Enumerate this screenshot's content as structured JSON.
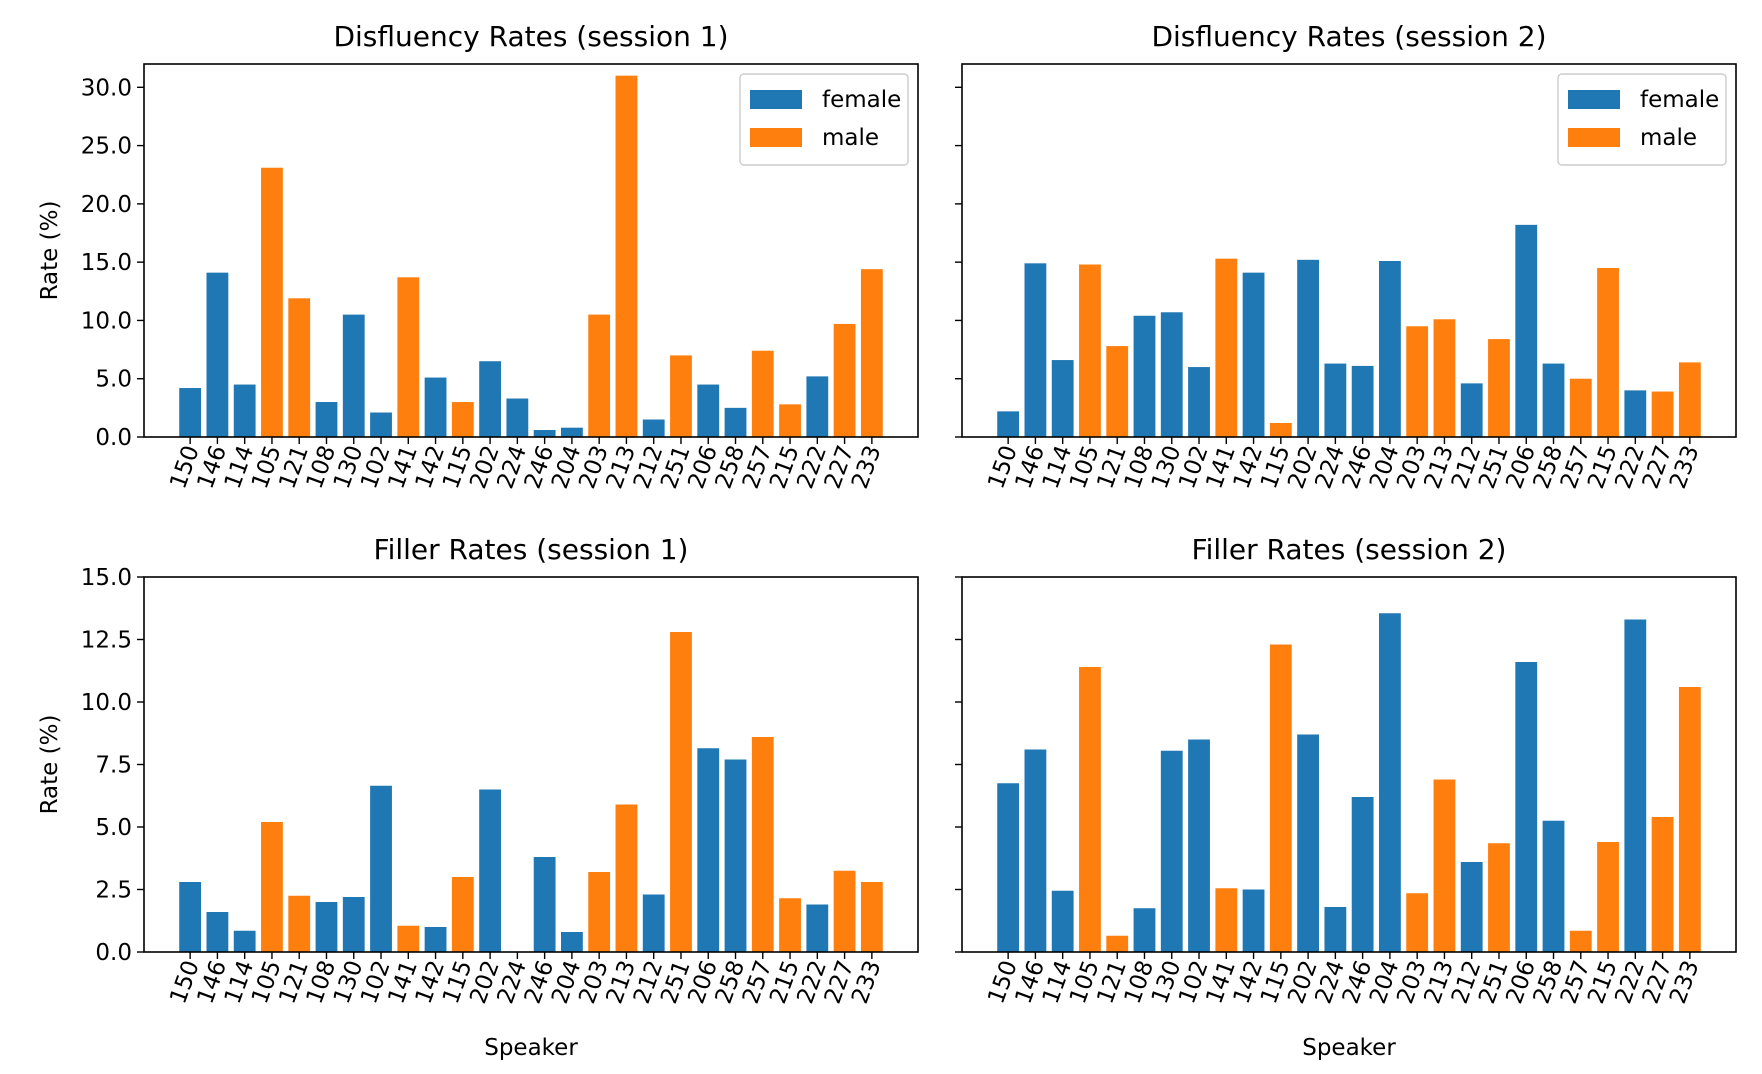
{
  "colors": {
    "female": "#1f77b4",
    "male": "#ff7f0e"
  },
  "shared": {
    "ylabel": "Rate (%)",
    "xlabel": "Speaker",
    "legend_location": "top-right"
  },
  "chart_data": [
    {
      "type": "bar",
      "title": "Disfluency Rates (session 1)",
      "ylabel": "Rate (%)",
      "xlabel": "",
      "ylim": [
        0,
        32
      ],
      "yticks": [
        "0.0",
        "5.0",
        "10.0",
        "15.0",
        "20.0",
        "25.0",
        "30.0"
      ],
      "legend": [
        "female",
        "male"
      ],
      "categories": [
        "150",
        "146",
        "114",
        "105",
        "121",
        "108",
        "130",
        "102",
        "141",
        "142",
        "115",
        "202",
        "224",
        "246",
        "204",
        "203",
        "213",
        "212",
        "251",
        "206",
        "258",
        "257",
        "215",
        "222",
        "227",
        "233"
      ],
      "gender": [
        "female",
        "female",
        "female",
        "male",
        "male",
        "female",
        "female",
        "female",
        "male",
        "female",
        "male",
        "female",
        "female",
        "female",
        "female",
        "male",
        "male",
        "female",
        "male",
        "female",
        "female",
        "male",
        "male",
        "female",
        "male",
        "male"
      ],
      "values": [
        4.2,
        14.1,
        4.5,
        23.1,
        11.9,
        3.0,
        10.5,
        2.1,
        13.7,
        5.1,
        3.0,
        6.5,
        3.3,
        0.6,
        0.8,
        10.5,
        31.0,
        1.5,
        7.0,
        4.5,
        2.5,
        7.4,
        2.8,
        5.2,
        9.7,
        14.4
      ]
    },
    {
      "type": "bar",
      "title": "Disfluency Rates (session 2)",
      "ylabel": "",
      "xlabel": "",
      "ylim": [
        0,
        32
      ],
      "yticks": [],
      "legend": [
        "female",
        "male"
      ],
      "categories": [
        "150",
        "146",
        "114",
        "105",
        "121",
        "108",
        "130",
        "102",
        "141",
        "142",
        "115",
        "202",
        "224",
        "246",
        "204",
        "203",
        "213",
        "212",
        "251",
        "206",
        "258",
        "257",
        "215",
        "222",
        "227",
        "233"
      ],
      "gender": [
        "female",
        "female",
        "female",
        "male",
        "male",
        "female",
        "female",
        "female",
        "male",
        "female",
        "male",
        "female",
        "female",
        "female",
        "female",
        "male",
        "male",
        "female",
        "male",
        "female",
        "female",
        "male",
        "male",
        "female",
        "male",
        "male"
      ],
      "values": [
        2.2,
        14.9,
        6.6,
        14.8,
        7.8,
        10.4,
        10.7,
        6.0,
        15.3,
        14.1,
        1.2,
        15.2,
        6.3,
        6.1,
        15.1,
        9.5,
        10.1,
        4.6,
        8.4,
        18.2,
        6.3,
        5.0,
        14.5,
        4.0,
        3.9,
        6.4
      ]
    },
    {
      "type": "bar",
      "title": "Filler Rates (session 1)",
      "ylabel": "Rate (%)",
      "xlabel": "Speaker",
      "ylim": [
        0,
        15
      ],
      "yticks": [
        "0.0",
        "2.5",
        "5.0",
        "7.5",
        "10.0",
        "12.5",
        "15.0"
      ],
      "legend": [],
      "categories": [
        "150",
        "146",
        "114",
        "105",
        "121",
        "108",
        "130",
        "102",
        "141",
        "142",
        "115",
        "202",
        "224",
        "246",
        "204",
        "203",
        "213",
        "212",
        "251",
        "206",
        "258",
        "257",
        "215",
        "222",
        "227",
        "233"
      ],
      "gender": [
        "female",
        "female",
        "female",
        "male",
        "male",
        "female",
        "female",
        "female",
        "male",
        "female",
        "male",
        "female",
        "female",
        "female",
        "female",
        "male",
        "male",
        "female",
        "male",
        "female",
        "female",
        "male",
        "male",
        "female",
        "male",
        "male"
      ],
      "values": [
        2.8,
        1.6,
        0.85,
        5.2,
        2.25,
        2.0,
        2.2,
        6.65,
        1.05,
        1.0,
        3.0,
        6.5,
        0,
        3.8,
        0.8,
        3.2,
        5.9,
        2.3,
        12.8,
        8.15,
        7.7,
        8.6,
        2.15,
        1.9,
        3.25,
        2.8
      ]
    },
    {
      "type": "bar",
      "title": "Filler Rates (session 2)",
      "ylabel": "",
      "xlabel": "Speaker",
      "ylim": [
        0,
        15
      ],
      "yticks": [],
      "legend": [],
      "categories": [
        "150",
        "146",
        "114",
        "105",
        "121",
        "108",
        "130",
        "102",
        "141",
        "142",
        "115",
        "202",
        "224",
        "246",
        "204",
        "203",
        "213",
        "212",
        "251",
        "206",
        "258",
        "257",
        "215",
        "222",
        "227",
        "233"
      ],
      "gender": [
        "female",
        "female",
        "female",
        "male",
        "male",
        "female",
        "female",
        "female",
        "male",
        "female",
        "male",
        "female",
        "female",
        "female",
        "female",
        "male",
        "male",
        "female",
        "male",
        "female",
        "female",
        "male",
        "male",
        "female",
        "male",
        "male"
      ],
      "values": [
        6.75,
        8.1,
        2.45,
        11.4,
        0.65,
        1.75,
        8.05,
        8.5,
        2.55,
        2.5,
        12.3,
        8.7,
        1.8,
        6.2,
        13.55,
        2.35,
        6.9,
        3.6,
        4.35,
        11.6,
        5.25,
        0.85,
        4.4,
        13.3,
        5.4,
        10.6
      ]
    }
  ]
}
